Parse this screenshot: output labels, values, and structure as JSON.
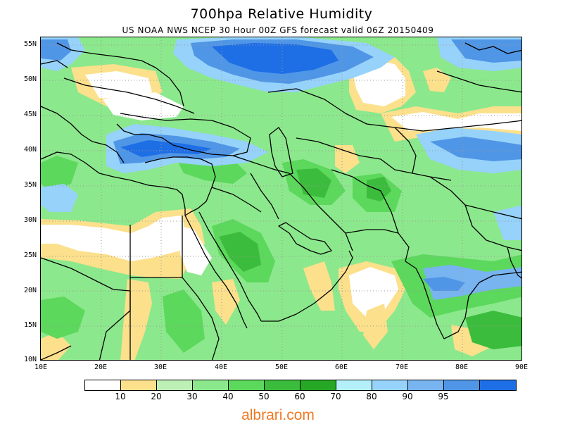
{
  "title": "700hpa Relative Humidity",
  "subtitle": "US NOAA NWS NCEP 30 Hour 00Z GFS forecast valid 06Z 20150409",
  "watermark": "albrari.com",
  "latitude_labels": [
    "55N",
    "50N",
    "45N",
    "40N",
    "35N",
    "30N",
    "25N",
    "20N",
    "15N",
    "10N"
  ],
  "longitude_labels": [
    "10E",
    "20E",
    "30E",
    "40E",
    "50E",
    "60E",
    "70E",
    "80E",
    "90E"
  ],
  "colorbar": {
    "colors": [
      "#ffffff",
      "#fce08c",
      "#bcf0b4",
      "#8ce88c",
      "#5cd85c",
      "#3cbc3c",
      "#26a826",
      "#b4f0fa",
      "#96d2fa",
      "#78b4f0",
      "#5096e6",
      "#1e6ee6"
    ],
    "labels": [
      "10",
      "20",
      "30",
      "40",
      "50",
      "60",
      "70",
      "80",
      "90",
      "95"
    ]
  },
  "map": {
    "type": "filled-contour",
    "variable": "relative humidity",
    "level": "700hpa",
    "lon_range": [
      10,
      90
    ],
    "lat_range": [
      10,
      56
    ]
  }
}
